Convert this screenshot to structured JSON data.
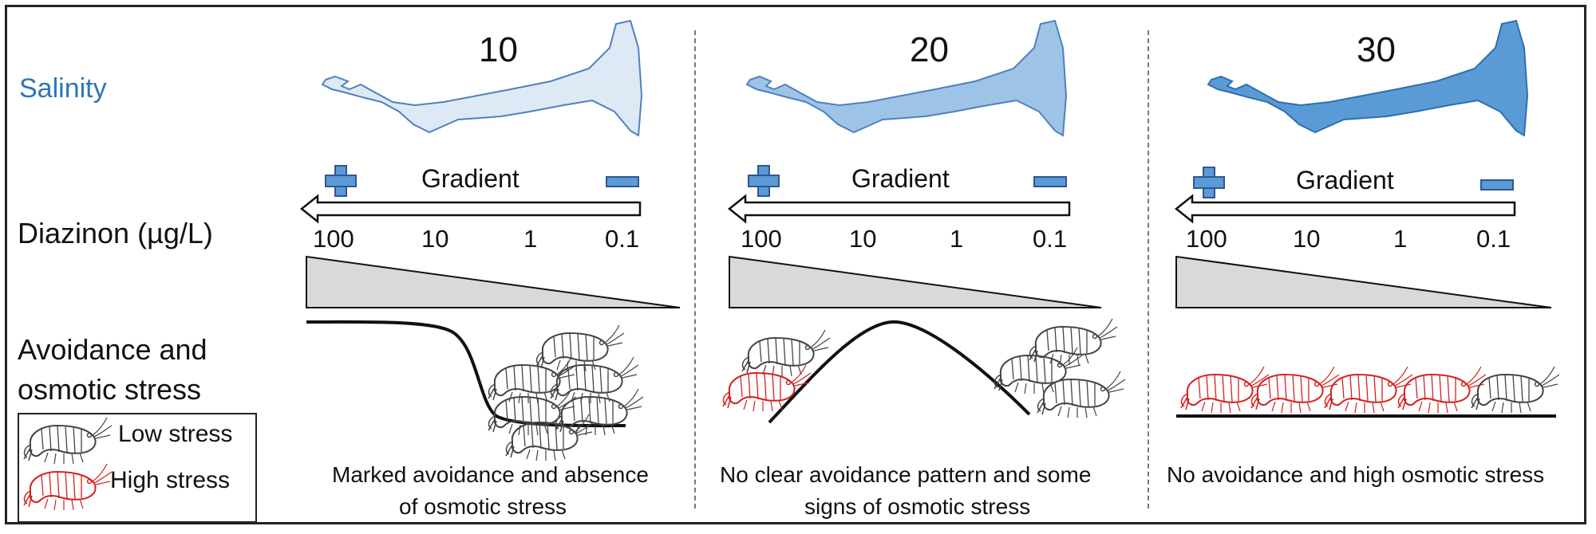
{
  "row_labels": {
    "salinity": "Salinity",
    "diazinon": "Diazinon (µg/L)",
    "avoidance_line1": "Avoidance and",
    "avoidance_line2": "osmotic stress"
  },
  "legend": {
    "low": "Low stress",
    "high": "High stress"
  },
  "colors": {
    "salinity_text": "#2e75b6",
    "low_stress": "#444444",
    "high_stress": "#d62020",
    "plus_minus": "#5b9bd5",
    "triangle_fill": "#d9d9d9"
  },
  "panels": [
    {
      "salinity": "10",
      "estuary_fill": "#dee9f6",
      "gradient_label": "Gradient",
      "plus": "plus-icon",
      "minus": "minus-icon",
      "ticks": [
        "100",
        "10",
        "1",
        "0.1"
      ],
      "curve": "avoidance-sigmoid",
      "shrimp": [
        "low",
        "low",
        "low",
        "low",
        "low",
        "low"
      ],
      "caption_line1": "Marked avoidance and absence",
      "caption_line2": "of osmotic stress"
    },
    {
      "salinity": "20",
      "estuary_fill": "#9dc3e6",
      "gradient_label": "Gradient",
      "plus": "plus-icon",
      "minus": "minus-icon",
      "ticks": [
        "100",
        "10",
        "1",
        "0.1"
      ],
      "curve": "hump",
      "shrimp": [
        "low",
        "high",
        "low",
        "low",
        "low"
      ],
      "caption_line1": "No clear avoidance pattern and some",
      "caption_line2": "signs of osmotic stress"
    },
    {
      "salinity": "30",
      "estuary_fill": "#5b9bd5",
      "gradient_label": "Gradient",
      "plus": "plus-icon",
      "minus": "minus-icon",
      "ticks": [
        "100",
        "10",
        "1",
        "0.1"
      ],
      "curve": "flat",
      "shrimp": [
        "high",
        "high",
        "high",
        "high",
        "low"
      ],
      "caption_line1": "No avoidance and high osmotic stress",
      "caption_line2": ""
    }
  ]
}
